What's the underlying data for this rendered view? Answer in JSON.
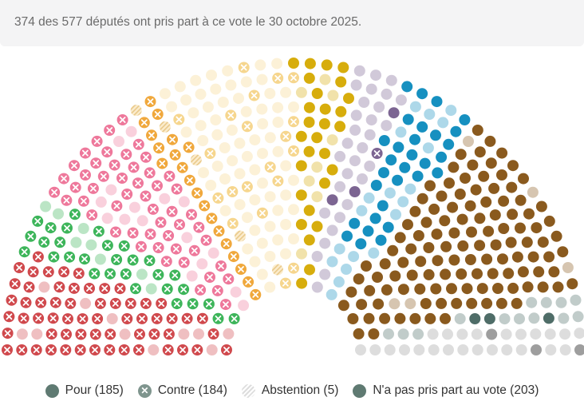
{
  "header": {
    "summary": "374 des 577 députés ont pris part à ce vote le 30 octobre 2025."
  },
  "legend": [
    {
      "label": "Pour (185)",
      "type": "pour"
    },
    {
      "label": "Contre (184)",
      "type": "contre"
    },
    {
      "label": "Abstention (5)",
      "type": "abstention"
    },
    {
      "label": "N'a pas pris part au vote (203)",
      "type": "absent"
    }
  ],
  "legend_color": "#5f7a72",
  "totals": {
    "seats": 577,
    "pour": 185,
    "contre": 184,
    "abstention": 5,
    "absent": 203
  },
  "groups": [
    {
      "color": "#d0494d",
      "pour": 0,
      "contre": 60,
      "abstention": 0,
      "absent": 11
    },
    {
      "color": "#3db55a",
      "pour": 0,
      "contre": 30,
      "abstention": 0,
      "absent": 8
    },
    {
      "color": "#ee789b",
      "pour": 0,
      "contre": 53,
      "abstention": 0,
      "absent": 16
    },
    {
      "color": "#f0a83c",
      "pour": 0,
      "contre": 20,
      "abstention": 3,
      "absent": 0
    },
    {
      "color": "#f6d68e",
      "pour": 0,
      "contre": 20,
      "abstention": 2,
      "absent": 69
    },
    {
      "color": "#d7ad0c",
      "pour": 28,
      "contre": 0,
      "abstention": 0,
      "absent": 8
    },
    {
      "color": "#7c6592",
      "pour": 3,
      "contre": 1,
      "abstention": 0,
      "absent": 30
    },
    {
      "color": "#1690c0",
      "pour": 30,
      "contre": 0,
      "abstention": 0,
      "absent": 19
    },
    {
      "color": "#8a5a1e",
      "pour": 118,
      "contre": 0,
      "abstention": 0,
      "absent": 5
    },
    {
      "color": "#4f6d68",
      "pour": 3,
      "contre": 0,
      "abstention": 0,
      "absent": 13
    },
    {
      "color": "#9e9e9e",
      "pour": 3,
      "contre": 0,
      "abstention": 0,
      "absent": 24
    }
  ]
}
